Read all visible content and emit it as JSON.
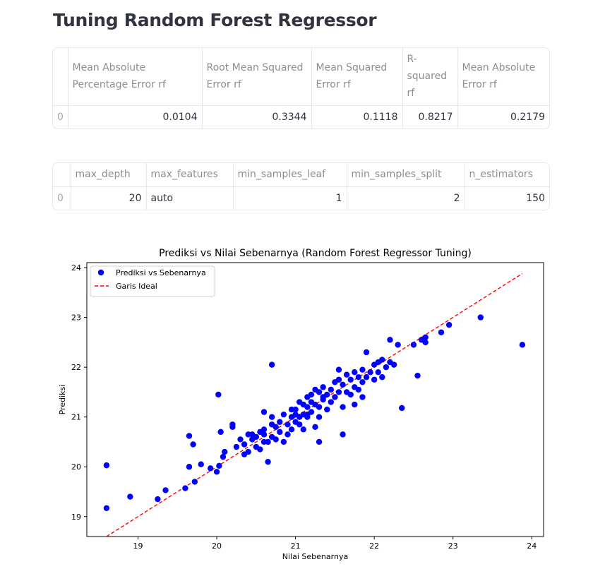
{
  "page": {
    "title": "Tuning Random Forest Regressor"
  },
  "metrics_table": {
    "headers": [
      "",
      "Mean Absolute Percentage Error rf",
      "Root Mean Squared Error rf",
      "Mean Squared Error rf",
      "R-squared rf",
      "Mean Absolute Error rf"
    ],
    "rows": [
      [
        "0",
        "0.0104",
        "0.3344",
        "0.1118",
        "0.8217",
        "0.2179"
      ]
    ]
  },
  "params_table": {
    "headers": [
      "",
      "max_depth",
      "max_features",
      "min_samples_leaf",
      "min_samples_split",
      "n_estimators"
    ],
    "rows": [
      [
        "0",
        "20",
        "auto",
        "1",
        "2",
        "150"
      ]
    ]
  },
  "colors": {
    "points": "#0000ff",
    "ideal_line": "#ff0000"
  },
  "chart_data": {
    "type": "scatter",
    "title": "Prediksi vs Nilai Sebenarnya (Random Forest Regressor Tuning)",
    "xlabel": "Nilai Sebenarnya",
    "ylabel": "Prediksi",
    "xlim": [
      18.35,
      24.15
    ],
    "ylim": [
      18.6,
      24.1
    ],
    "xticks": [
      19,
      20,
      21,
      22,
      23,
      24
    ],
    "yticks": [
      19,
      20,
      21,
      22,
      23,
      24
    ],
    "grid": false,
    "legend": {
      "placement": "top-left",
      "entries": [
        "Prediksi vs Sebenarnya",
        "Garis Ideal"
      ]
    },
    "series": [
      {
        "name": "Prediksi vs Sebenarnya",
        "marker": "circle",
        "color": "#0000ff",
        "x": [
          18.6,
          18.6,
          18.9,
          19.25,
          19.35,
          19.6,
          19.65,
          19.65,
          19.7,
          19.72,
          19.8,
          19.92,
          20.0,
          20.03,
          20.05,
          20.08,
          20.1,
          20.2,
          20.2,
          20.25,
          20.3,
          20.35,
          20.35,
          20.4,
          20.45,
          20.45,
          20.5,
          20.5,
          20.55,
          20.55,
          20.6,
          20.6,
          20.6,
          20.65,
          20.65,
          20.7,
          20.7,
          20.7,
          20.75,
          20.75,
          20.8,
          20.8,
          20.85,
          20.85,
          20.9,
          20.9,
          20.95,
          20.95,
          21.0,
          21.0,
          21.0,
          21.05,
          21.05,
          21.05,
          21.1,
          21.1,
          21.1,
          21.15,
          21.15,
          21.15,
          21.2,
          21.2,
          21.2,
          21.25,
          21.25,
          21.3,
          21.3,
          21.3,
          21.35,
          21.35,
          21.4,
          21.4,
          21.45,
          21.45,
          21.5,
          21.5,
          21.55,
          21.55,
          21.6,
          21.6,
          21.65,
          21.65,
          21.7,
          21.7,
          21.75,
          21.75,
          21.8,
          21.8,
          21.85,
          21.85,
          21.9,
          21.9,
          21.95,
          22.0,
          22.0,
          22.05,
          22.05,
          22.1,
          22.1,
          22.15,
          22.2,
          22.2,
          22.25,
          22.3,
          22.35,
          22.5,
          22.55,
          22.6,
          22.65,
          22.65,
          22.85,
          22.95,
          23.35,
          23.88,
          20.7,
          20.02,
          20.4,
          20.6,
          21.3,
          21.6,
          21.75,
          21.85,
          21.55,
          21.35,
          20.95,
          21.15,
          21.25
        ],
        "y": [
          20.03,
          19.17,
          19.4,
          19.35,
          19.53,
          19.57,
          20.62,
          20.0,
          20.45,
          19.7,
          20.05,
          19.97,
          19.9,
          20.02,
          20.7,
          20.2,
          20.3,
          20.8,
          20.85,
          20.4,
          20.55,
          20.25,
          20.45,
          20.3,
          20.55,
          20.65,
          20.4,
          20.6,
          20.7,
          20.35,
          20.5,
          20.65,
          20.75,
          20.1,
          20.5,
          20.6,
          20.85,
          21.0,
          20.55,
          20.8,
          20.7,
          20.9,
          20.5,
          21.05,
          20.65,
          20.85,
          20.75,
          21.0,
          20.9,
          21.05,
          21.15,
          20.85,
          21.0,
          21.3,
          20.75,
          21.05,
          21.25,
          21.0,
          21.2,
          21.4,
          21.1,
          21.3,
          21.45,
          20.8,
          21.25,
          21.0,
          21.2,
          21.5,
          21.35,
          21.6,
          21.15,
          21.45,
          21.3,
          21.55,
          21.4,
          21.7,
          21.5,
          21.75,
          21.2,
          21.65,
          21.5,
          21.85,
          21.45,
          21.75,
          21.6,
          21.9,
          21.55,
          21.8,
          21.95,
          21.7,
          22.3,
          21.8,
          21.9,
          21.75,
          22.05,
          21.9,
          22.1,
          21.8,
          22.15,
          22.0,
          22.1,
          22.55,
          22.05,
          22.45,
          21.18,
          22.45,
          21.83,
          22.55,
          22.5,
          22.6,
          22.7,
          22.85,
          23.0,
          22.45,
          22.05,
          21.45,
          20.65,
          21.1,
          20.5,
          20.65,
          21.25,
          21.4,
          21.95,
          21.4,
          21.15,
          21.05,
          21.55
        ]
      },
      {
        "name": "Garis Ideal",
        "line": "dashed",
        "color": "#ff0000",
        "x": [
          18.6,
          23.88
        ],
        "y": [
          18.6,
          23.88
        ]
      }
    ]
  }
}
